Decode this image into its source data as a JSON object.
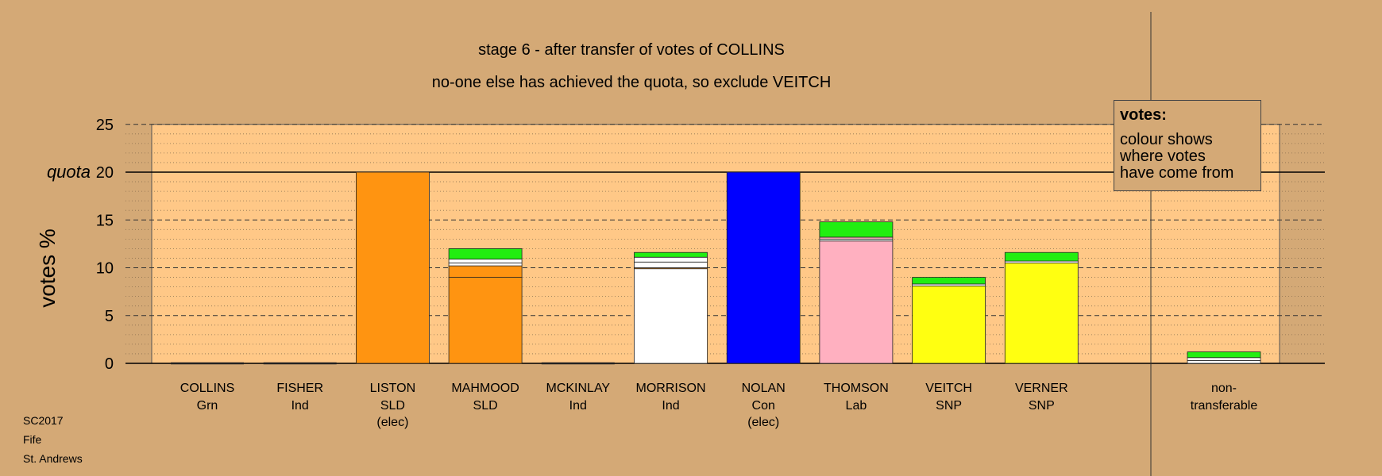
{
  "header": {
    "title": "stage 6 - after transfer of votes of COLLINS",
    "subtitle": "no-one else has achieved the quota, so exclude VEITCH"
  },
  "legend": {
    "title": "votes:",
    "text": "colour shows\nwhere votes\nhave come from"
  },
  "footer": [
    "SC2017",
    "Fife",
    "St. Andrews"
  ],
  "colors": {
    "background": "#d4a976",
    "plot_area": "#ffc887",
    "Grn": "#22ee11",
    "SLD": "#ff9411",
    "Ind": "#ffffff",
    "Con": "#0000ff",
    "Lab": "#ffb0c0",
    "SNP": "#ffff11"
  },
  "chart_data": {
    "type": "bar",
    "stacked": true,
    "title": "stage 6 - after transfer of votes of COLLINS",
    "subtitle": "no-one else has achieved the quota, so exclude VEITCH",
    "ylabel": "votes %",
    "ylim": [
      0,
      25
    ],
    "yticks": [
      "0",
      "5",
      "10",
      "15",
      "20",
      "25"
    ],
    "quota": 20,
    "quota_label": "quota",
    "grid": true,
    "legend_placement": "top-right",
    "candidates": [
      {
        "name": "COLLINS",
        "party": "Grn",
        "note": "",
        "segments": []
      },
      {
        "name": "FISHER",
        "party": "Ind",
        "note": "",
        "segments": []
      },
      {
        "name": "LISTON",
        "party": "SLD",
        "note": "(elec)",
        "segments": [
          {
            "source": "SLD",
            "value": 20.0
          }
        ]
      },
      {
        "name": "MAHMOOD",
        "party": "SLD",
        "note": "",
        "segments": [
          {
            "source": "SLD",
            "value": 9.0
          },
          {
            "source": "SLD",
            "value": 1.2
          },
          {
            "source": "Ind",
            "value": 0.3
          },
          {
            "source": "Ind",
            "value": 0.4
          },
          {
            "source": "Grn",
            "value": 1.1
          }
        ]
      },
      {
        "name": "MCKINLAY",
        "party": "Ind",
        "note": "",
        "segments": []
      },
      {
        "name": "MORRISON",
        "party": "Ind",
        "note": "",
        "segments": [
          {
            "source": "Ind",
            "value": 9.9
          },
          {
            "source": "SLD",
            "value": 0.1
          },
          {
            "source": "Ind",
            "value": 0.6
          },
          {
            "source": "Ind",
            "value": 0.5
          },
          {
            "source": "Grn",
            "value": 0.5
          }
        ]
      },
      {
        "name": "NOLAN",
        "party": "Con",
        "note": "(elec)",
        "segments": [
          {
            "source": "Con",
            "value": 20.0
          }
        ]
      },
      {
        "name": "THOMSON",
        "party": "Lab",
        "note": "",
        "segments": [
          {
            "source": "Lab",
            "value": 12.8
          },
          {
            "source": "Ind",
            "value": 0.2
          },
          {
            "source": "Lab",
            "value": 0.2
          },
          {
            "source": "Grn",
            "value": 1.6
          }
        ]
      },
      {
        "name": "VEITCH",
        "party": "SNP",
        "note": "",
        "segments": [
          {
            "source": "SNP",
            "value": 8.1
          },
          {
            "source": "Ind",
            "value": 0.2
          },
          {
            "source": "Grn",
            "value": 0.7
          }
        ]
      },
      {
        "name": "VERNER",
        "party": "SNP",
        "note": "",
        "segments": [
          {
            "source": "SNP",
            "value": 10.5
          },
          {
            "source": "Ind",
            "value": 0.2
          },
          {
            "source": "Grn",
            "value": 0.9
          }
        ]
      }
    ],
    "nontransferable": {
      "label": [
        "non-",
        "transferable"
      ],
      "segments": [
        {
          "source": "Ind",
          "value": 0.3
        },
        {
          "source": "Ind",
          "value": 0.3
        },
        {
          "source": "Grn",
          "value": 0.6
        }
      ]
    }
  }
}
